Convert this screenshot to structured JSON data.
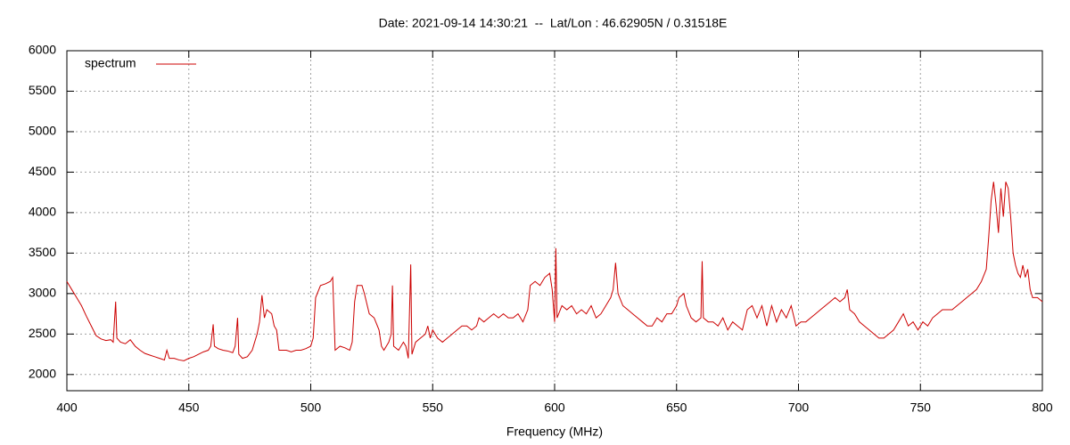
{
  "chart_data": {
    "type": "line",
    "title": "Date: 2021-09-14 14:30:21  --  Lat/Lon : 46.62905N / 0.31518E",
    "x_label": "Frequency (MHz)",
    "xlim": [
      400,
      800
    ],
    "xticks": [
      400,
      450,
      500,
      550,
      600,
      650,
      700,
      750,
      800
    ],
    "ylim": [
      1800,
      6000
    ],
    "yticks": [
      2000,
      2500,
      3000,
      3500,
      4000,
      4500,
      5000,
      5500,
      6000
    ],
    "grid": true,
    "legend": "top-left",
    "x": [
      400,
      402,
      404,
      406,
      408,
      410,
      412,
      414,
      416,
      418,
      419,
      420,
      420.5,
      422,
      424,
      426,
      428,
      430,
      432,
      434,
      436,
      438,
      440,
      441,
      442,
      444,
      446,
      448,
      450,
      452,
      454,
      456,
      458,
      459,
      460,
      460.5,
      462,
      464,
      466,
      468,
      469,
      470,
      470.5,
      472,
      474,
      476,
      478,
      479,
      480,
      481,
      482,
      484,
      485,
      486,
      487,
      490,
      492,
      494,
      496,
      498,
      500,
      501,
      502,
      504,
      506,
      508,
      509,
      510,
      512,
      514,
      516,
      517,
      518,
      519,
      521,
      522,
      524,
      526,
      528,
      529,
      530,
      532,
      533,
      533.5,
      534,
      536,
      538,
      539,
      540,
      541,
      541.5,
      543,
      545,
      547,
      548,
      549,
      550,
      552,
      554,
      556,
      558,
      560,
      562,
      564,
      566,
      568,
      569,
      571,
      573,
      575,
      577,
      579,
      581,
      583,
      585,
      587,
      589,
      590,
      592,
      594,
      596,
      598,
      599,
      600,
      600.5,
      601,
      603,
      605,
      607,
      609,
      611,
      613,
      615,
      617,
      619,
      621,
      623,
      624,
      625,
      626,
      628,
      630,
      632,
      634,
      636,
      638,
      640,
      642,
      644,
      646,
      648,
      650,
      651,
      653,
      654,
      656,
      658,
      660,
      660.5,
      661,
      663,
      665,
      667,
      669,
      671,
      673,
      675,
      677,
      679,
      681,
      683,
      685,
      687,
      689,
      691,
      693,
      695,
      697,
      699,
      701,
      703,
      705,
      707,
      709,
      711,
      713,
      715,
      717,
      719,
      720,
      721,
      723,
      725,
      727,
      729,
      731,
      733,
      735,
      737,
      739,
      741,
      743,
      745,
      747,
      749,
      751,
      753,
      755,
      757,
      759,
      761,
      763,
      765,
      767,
      769,
      771,
      773,
      775,
      777,
      778,
      779,
      780,
      781,
      782,
      783,
      784,
      785,
      786,
      787,
      788,
      789,
      790,
      791,
      792,
      793,
      794,
      795,
      796,
      798,
      800
    ],
    "series": [
      {
        "name": "spectrum",
        "color": "#cc0000",
        "values": [
          3150,
          3050,
          2950,
          2850,
          2720,
          2600,
          2480,
          2440,
          2420,
          2430,
          2400,
          2900,
          2450,
          2400,
          2380,
          2430,
          2350,
          2300,
          2260,
          2240,
          2220,
          2200,
          2180,
          2300,
          2200,
          2200,
          2180,
          2170,
          2200,
          2220,
          2250,
          2280,
          2300,
          2350,
          2620,
          2350,
          2320,
          2300,
          2290,
          2270,
          2350,
          2700,
          2250,
          2200,
          2220,
          2300,
          2500,
          2650,
          2980,
          2700,
          2800,
          2750,
          2600,
          2550,
          2300,
          2300,
          2280,
          2300,
          2300,
          2320,
          2350,
          2450,
          2950,
          3100,
          3120,
          3150,
          3200,
          2300,
          2350,
          2330,
          2300,
          2400,
          2900,
          3100,
          3100,
          3000,
          2750,
          2700,
          2550,
          2350,
          2300,
          2400,
          2500,
          3100,
          2350,
          2300,
          2400,
          2350,
          2200,
          3360,
          2250,
          2400,
          2450,
          2500,
          2600,
          2450,
          2550,
          2450,
          2400,
          2450,
          2500,
          2550,
          2600,
          2600,
          2550,
          2600,
          2700,
          2650,
          2700,
          2750,
          2700,
          2750,
          2700,
          2700,
          2750,
          2650,
          2800,
          3100,
          3150,
          3100,
          3200,
          3250,
          3050,
          2650,
          3560,
          2700,
          2850,
          2800,
          2850,
          2750,
          2800,
          2750,
          2850,
          2700,
          2750,
          2850,
          2950,
          3050,
          3380,
          3000,
          2850,
          2800,
          2750,
          2700,
          2650,
          2600,
          2600,
          2700,
          2650,
          2750,
          2750,
          2850,
          2950,
          3000,
          2850,
          2700,
          2650,
          2700,
          3400,
          2700,
          2650,
          2650,
          2600,
          2700,
          2550,
          2650,
          2600,
          2550,
          2800,
          2850,
          2700,
          2850,
          2600,
          2850,
          2650,
          2800,
          2700,
          2850,
          2600,
          2650,
          2650,
          2700,
          2750,
          2800,
          2850,
          2900,
          2950,
          2900,
          2950,
          3050,
          2800,
          2750,
          2650,
          2600,
          2550,
          2500,
          2450,
          2450,
          2500,
          2550,
          2650,
          2750,
          2600,
          2650,
          2550,
          2650,
          2600,
          2700,
          2750,
          2800,
          2800,
          2800,
          2850,
          2900,
          2950,
          3000,
          3050,
          3150,
          3300,
          3700,
          4150,
          4380,
          4100,
          3750,
          4300,
          3950,
          4380,
          4300,
          3950,
          3500,
          3350,
          3250,
          3200,
          3350,
          3200,
          3300,
          3050,
          2950,
          2950,
          2900
        ]
      }
    ]
  }
}
